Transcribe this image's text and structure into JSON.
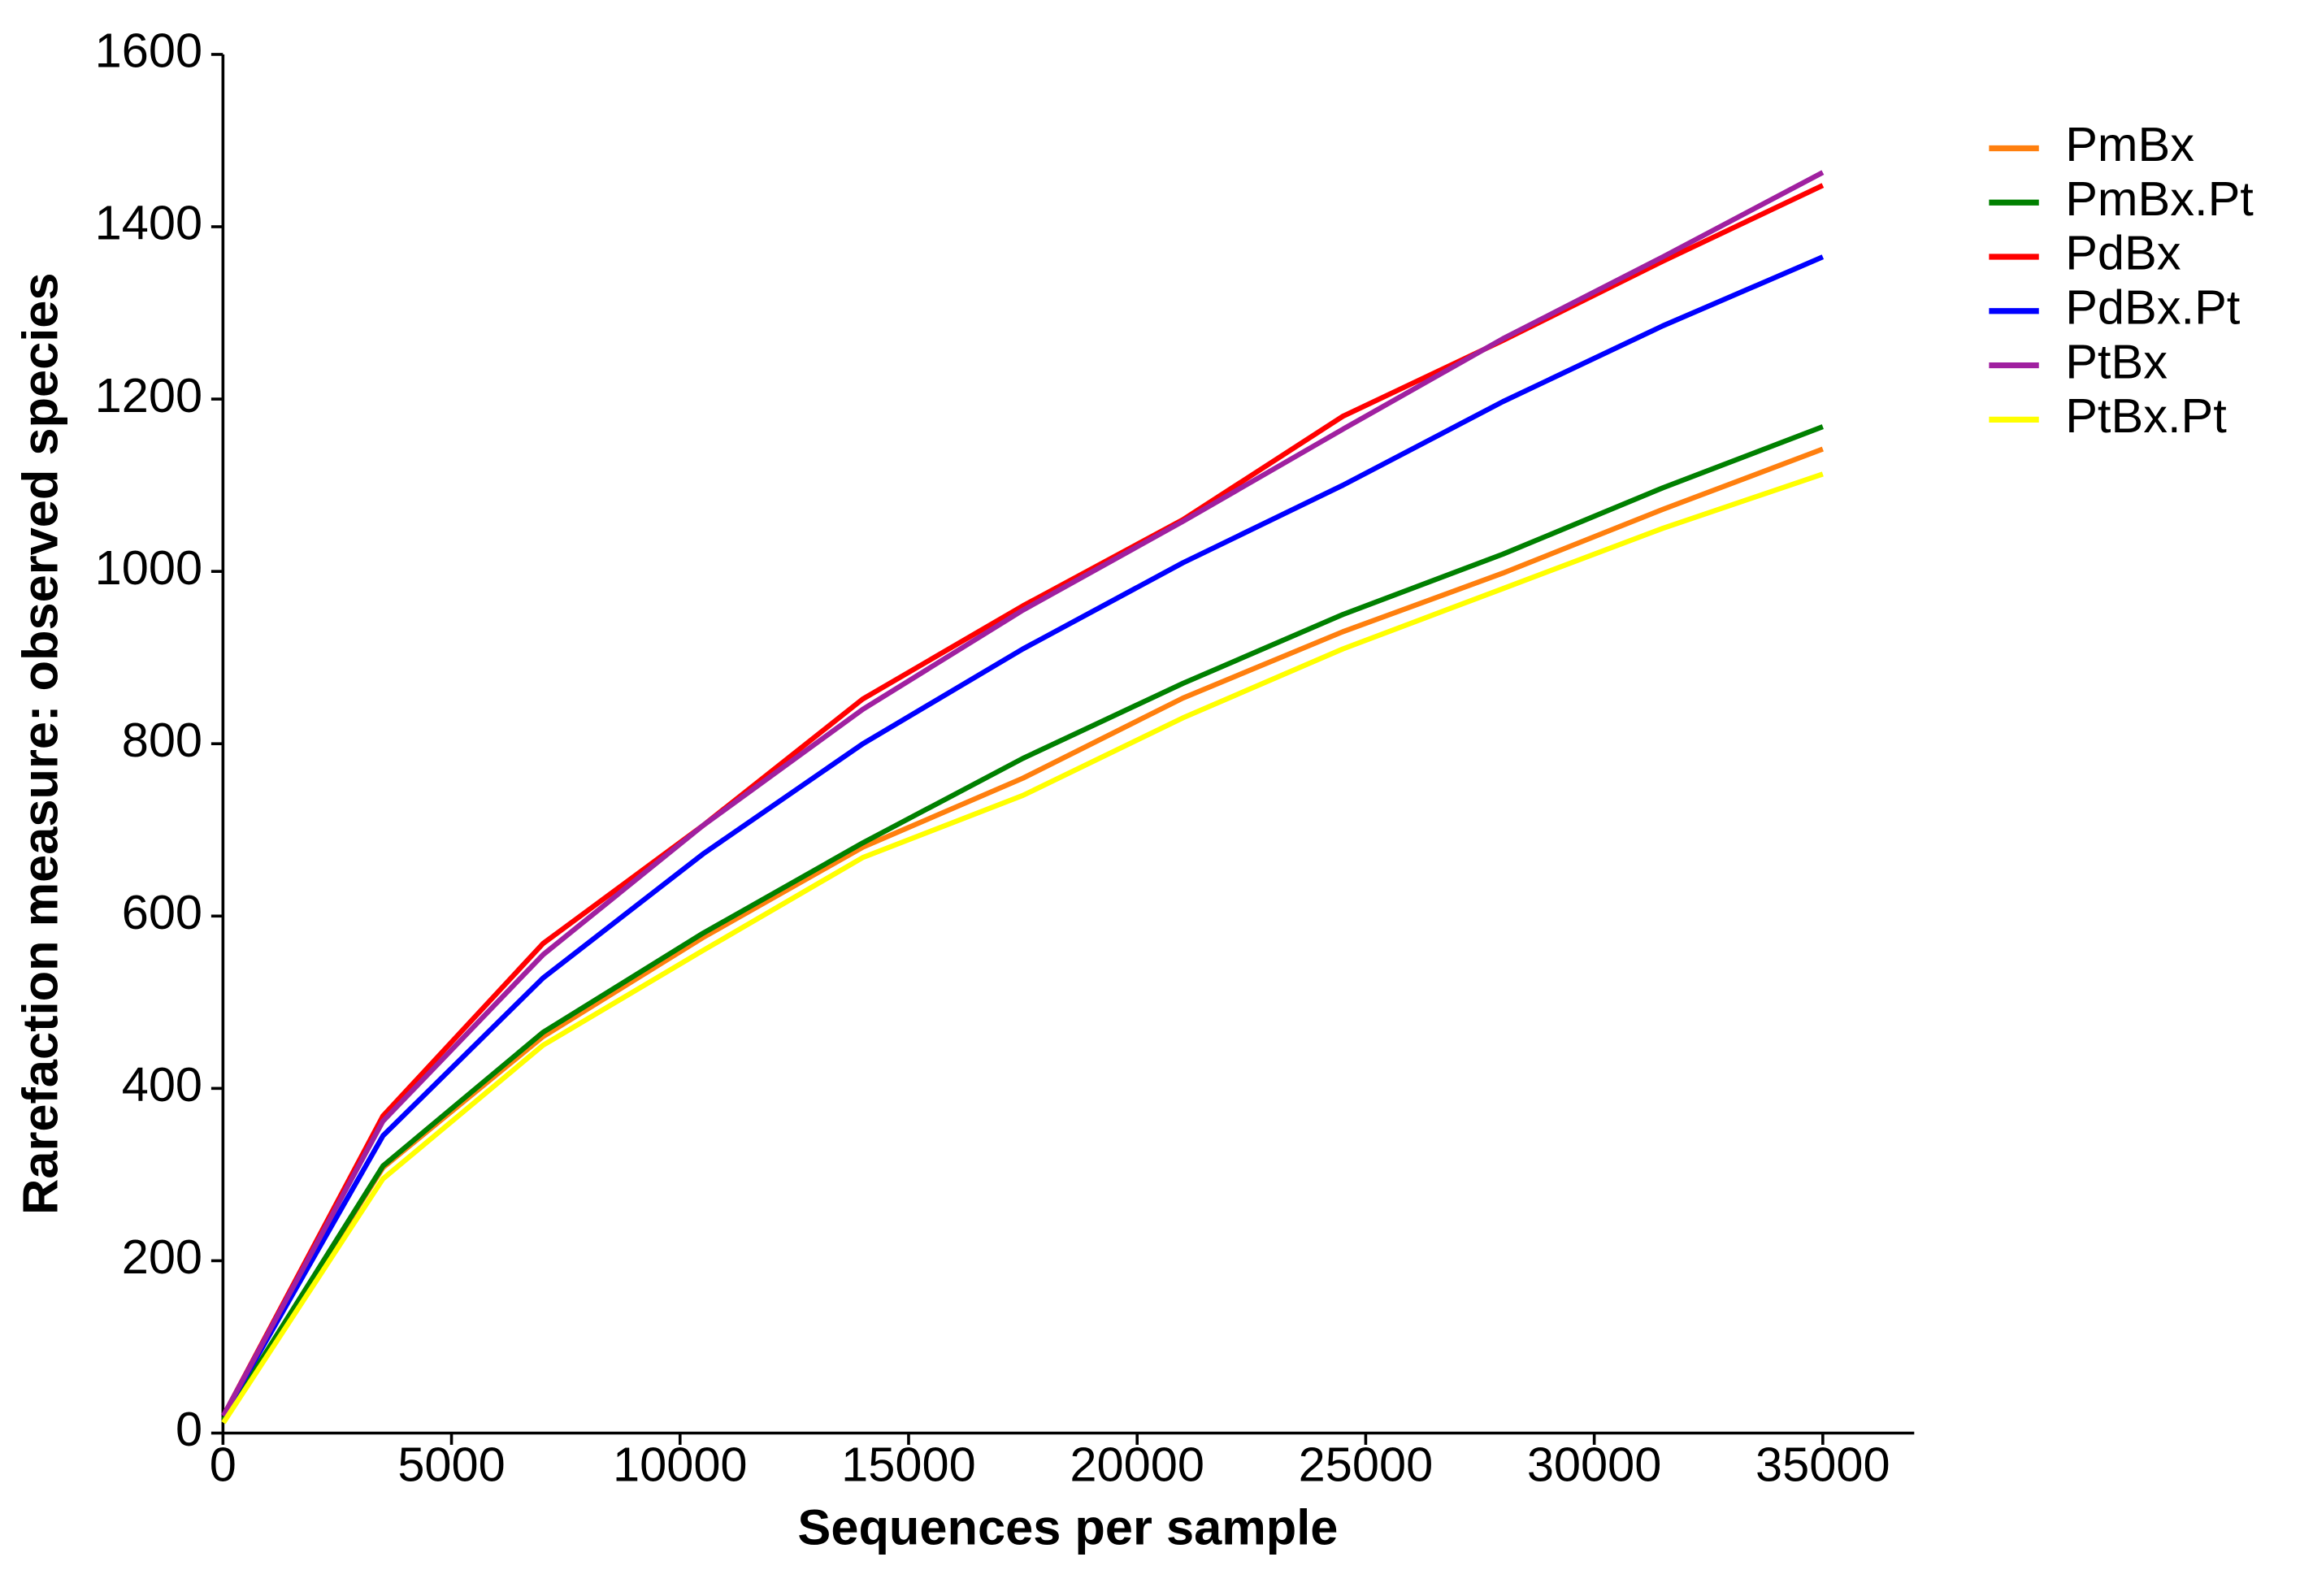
{
  "chart_data": {
    "type": "line",
    "x_label": "Sequences per sample",
    "y_label": "Rarefaction measure: observed species",
    "x": [
      10,
      3500,
      7000,
      10500,
      14000,
      17500,
      21000,
      24500,
      28000,
      31500,
      35000
    ],
    "series": [
      {
        "name": "PmBx",
        "color": "#ff7f0e",
        "values": [
          15,
          308,
          460,
          575,
          680,
          760,
          853,
          930,
          998,
          1072,
          1142
        ]
      },
      {
        "name": "PmBx.Pt",
        "color": "#008000",
        "values": [
          15,
          310,
          465,
          580,
          685,
          783,
          870,
          950,
          1020,
          1097,
          1168
        ]
      },
      {
        "name": "PdBx",
        "color": "#ff0000",
        "values": [
          20,
          368,
          568,
          705,
          852,
          960,
          1060,
          1180,
          1268,
          1360,
          1448
        ]
      },
      {
        "name": "PdBx.Pt",
        "color": "#0000ff",
        "values": [
          20,
          345,
          528,
          672,
          800,
          910,
          1010,
          1100,
          1197,
          1285,
          1365
        ]
      },
      {
        "name": "PtBx",
        "color": "#a020a0",
        "values": [
          20,
          362,
          555,
          705,
          840,
          955,
          1058,
          1165,
          1270,
          1365,
          1463
        ]
      },
      {
        "name": "PtBx.Pt",
        "color": "#ffff00",
        "values": [
          12,
          295,
          450,
          560,
          668,
          740,
          830,
          910,
          980,
          1050,
          1113
        ]
      }
    ],
    "xlim": [
      0,
      37000
    ],
    "ylim": [
      0,
      1600
    ],
    "xticks": [
      0,
      5000,
      10000,
      15000,
      20000,
      25000,
      30000,
      35000
    ],
    "yticks": [
      0,
      200,
      400,
      600,
      800,
      1000,
      1200,
      1400,
      1600
    ],
    "legend": "upper right outside"
  }
}
